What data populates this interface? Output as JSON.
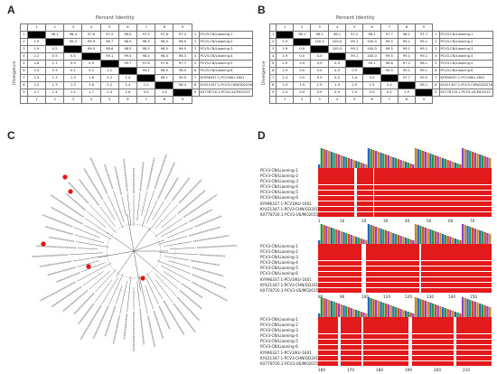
{
  "panels": {
    "a": "A",
    "b": "B",
    "c": "C",
    "d": "D"
  },
  "matrix_a": {
    "title": "Percent Identity",
    "side_label": "Divergence",
    "col_numbers": [
      "1",
      "2",
      "3",
      "4",
      "5",
      "6",
      "7",
      "8",
      "9"
    ],
    "rows": [
      {
        "n": "1",
        "cells": [
          "",
          "98.1",
          "98.4",
          "97.6",
          "97.2",
          "98.0",
          "97.5",
          "97.6",
          "97.4"
        ],
        "name": "PCV3-CN/Liaoning-1"
      },
      {
        "n": "2",
        "cells": [
          "1.9",
          "",
          "99.5",
          "99.9",
          "98.7",
          "98.9",
          "98.5",
          "98.5",
          "98.5"
        ],
        "name": "PCV3-CN/Liaoning-2"
      },
      {
        "n": "3",
        "cells": [
          "1.9",
          "0.2",
          "",
          "99.5",
          "98.6",
          "98.5",
          "98.5",
          "98.5",
          "98.5"
        ],
        "name": "PCV3-CN/Liaoning-3"
      },
      {
        "n": "4",
        "cells": [
          "2.2",
          "0.5",
          "0.5",
          "",
          "99.1",
          "99.5",
          "98.4",
          "98.4",
          "98.3"
        ],
        "name": "PCV3-CN/Liaoning-4"
      },
      {
        "n": "5",
        "cells": [
          "2.8",
          "1.1",
          "0.9",
          "0.9",
          "",
          "99.7",
          "97.6",
          "97.6",
          "97.7"
        ],
        "name": "PCV3-CN/Liaoning-5"
      },
      {
        "n": "6",
        "cells": [
          "2.0",
          "0.3",
          "0.2",
          "0.2",
          "1.1",
          "",
          "99.1",
          "98.5",
          "98.5"
        ],
        "name": "PCV3-CN/Liaoning-6"
      },
      {
        "n": "7",
        "cells": [
          "2.5",
          "1.3",
          "1.3",
          "1.6",
          "2.2",
          "1.4",
          "",
          "98.1",
          "99.5"
        ],
        "name": "KY996337.1-PCV3/KU-1601"
      },
      {
        "n": "8",
        "cells": [
          "2.2",
          "1.3",
          "1.3",
          "1.6",
          "2.2",
          "1.4",
          "1.0",
          "",
          "98.4"
        ],
        "name": "KY421347.1-PCV3-CHN/GD2016"
      },
      {
        "n": "9",
        "cells": [
          "2.7",
          "1.4",
          "1.4",
          "1.7",
          "2.4",
          "1.6",
          "0.5",
          "1.4",
          ""
        ],
        "name": "KX778720.1-PCV3-US/MO2015"
      }
    ]
  },
  "matrix_b": {
    "title": "Percent Identity",
    "side_label": "Divergence",
    "col_numbers": [
      "1",
      "2",
      "3",
      "4",
      "5",
      "6",
      "7",
      "8",
      "9"
    ],
    "rows": [
      {
        "n": "1",
        "cells": [
          "",
          "98.1",
          "98.1",
          "98.1",
          "97.2",
          "98.1",
          "97.7",
          "98.1",
          "97.7"
        ],
        "name": "PCV3-CN/Liaoning-1"
      },
      {
        "n": "2",
        "cells": [
          "1.9",
          "",
          "100.0",
          "100.0",
          "99.1",
          "100.0",
          "99.5",
          "99.1",
          "99.1"
        ],
        "name": "PCV3-CN/Liaoning-2"
      },
      {
        "n": "3",
        "cells": [
          "1.9",
          "0.0",
          "",
          "100.0",
          "99.1",
          "100.0",
          "99.5",
          "99.1",
          "99.1"
        ],
        "name": "PCV3-CN/Liaoning-3"
      },
      {
        "n": "4",
        "cells": [
          "1.9",
          "0.0",
          "0.0",
          "",
          "99.1",
          "100.0",
          "99.5",
          "99.1",
          "99.1"
        ],
        "name": "PCV3-CN/Liaoning-4"
      },
      {
        "n": "5",
        "cells": [
          "2.9",
          "0.9",
          "0.9",
          "0.9",
          "",
          "99.1",
          "98.6",
          "97.2",
          "98.1"
        ],
        "name": "PCV3-CN/Liaoning-5"
      },
      {
        "n": "6",
        "cells": [
          "1.9",
          "0.0",
          "0.0",
          "0.0",
          "0.9",
          "",
          "99.5",
          "99.1",
          "99.1"
        ],
        "name": "PCV3-CN/Liaoning-6"
      },
      {
        "n": "7",
        "cells": [
          "2.4",
          "0.5",
          "0.5",
          "0.5",
          "1.4",
          "0.5",
          "",
          "97.7",
          "99.5"
        ],
        "name": "KY996337.1-PCV3/KU-1601"
      },
      {
        "n": "8",
        "cells": [
          "1.9",
          "1.9",
          "1.9",
          "1.9",
          "2.9",
          "1.9",
          "2.4",
          "",
          "98.1"
        ],
        "name": "KY421347.1-PCV3-CHN/GD2016"
      },
      {
        "n": "9",
        "cells": [
          "2.4",
          "0.9",
          "0.9",
          "0.9",
          "1.9",
          "0.9",
          "0.5",
          "1.9",
          ""
        ],
        "name": "KX778720.1-PCV3-US/MO2015"
      }
    ]
  },
  "alignment": {
    "seq_names": [
      "PCV3-CN/Liaoning-1",
      "PCV3-CN/Liaoning-2",
      "PCV3-CN/Liaoning-3",
      "PCV3-CN/Liaoning-4",
      "PCV3-CN/Liaoning-5",
      "PCV3-CN/Liaoning-6",
      "KY996337.1-PCV3/KU-1601",
      "KY421347.1-PCV3-CHN/GD2016",
      "KX778720.1-PCV3-US/MO2015"
    ],
    "block1_ruler": [
      "1",
      "10",
      "20",
      "30",
      "40",
      "50",
      "60",
      "70"
    ],
    "block2_ruler": [
      "80",
      "90",
      "100",
      "110",
      "120",
      "130",
      "140",
      "150"
    ],
    "block3_ruler": [
      "160",
      "170",
      "180",
      "190",
      "200",
      "210"
    ]
  },
  "colors": {
    "alignment_red": "#e31a1c",
    "marker_red": "#e8120c"
  }
}
